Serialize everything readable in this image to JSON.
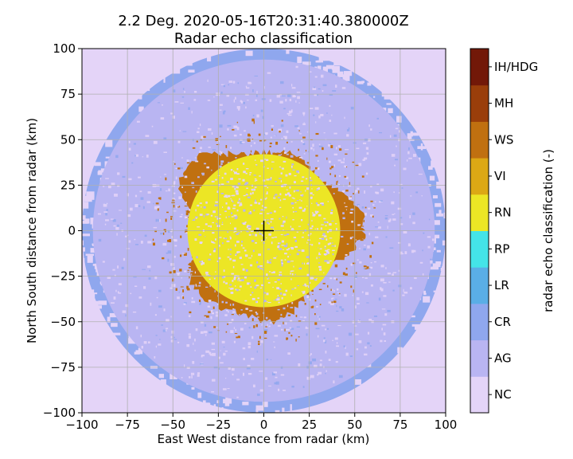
{
  "chart_data": {
    "type": "heatmap",
    "title": "2.2 Deg. 2020-05-16T20:31:40.380000Z",
    "subtitle": "Radar echo classification",
    "xlabel": "East West distance from radar (km)",
    "ylabel": "North South distance from radar (km)",
    "xlim": [
      -100,
      100
    ],
    "ylim": [
      -100,
      100
    ],
    "x_ticks": [
      -100,
      -75,
      -50,
      -25,
      0,
      25,
      50,
      75,
      100
    ],
    "y_ticks": [
      -100,
      -75,
      -50,
      -25,
      0,
      25,
      50,
      75,
      100
    ],
    "x_tick_labels": [
      "−100",
      "−75",
      "−50",
      "−25",
      "0",
      "25",
      "50",
      "75",
      "100"
    ],
    "y_tick_labels": [
      "−100",
      "−75",
      "−50",
      "−25",
      "0",
      "25",
      "50",
      "75",
      "100"
    ],
    "grid": true,
    "radar_location": [
      0,
      0
    ],
    "colorbar": {
      "label": "radar echo classification (-)",
      "placement": "right",
      "classes": [
        {
          "code": "NC",
          "color": "#e4d4f8"
        },
        {
          "code": "AG",
          "color": "#b9b5f2"
        },
        {
          "code": "CR",
          "color": "#8fa7ee"
        },
        {
          "code": "LR",
          "color": "#5aaee6"
        },
        {
          "code": "RP",
          "color": "#44e4e8"
        },
        {
          "code": "RN",
          "color": "#ece625"
        },
        {
          "code": "VI",
          "color": "#dca815"
        },
        {
          "code": "WS",
          "color": "#c07010"
        },
        {
          "code": "MH",
          "color": "#9a3e0a"
        },
        {
          "code": "IH/HDG",
          "color": "#721808"
        }
      ]
    },
    "regions": [
      {
        "class": "NC",
        "description_range_km": "outside ~97 km and scattered patches"
      },
      {
        "class": "CR",
        "range_km": [
          94,
          100
        ]
      },
      {
        "class": "AG",
        "range_km": [
          43,
          94
        ]
      },
      {
        "class": "WS",
        "range_km": [
          40,
          56
        ]
      },
      {
        "class": "RN",
        "range_km": [
          0,
          42
        ]
      }
    ]
  }
}
